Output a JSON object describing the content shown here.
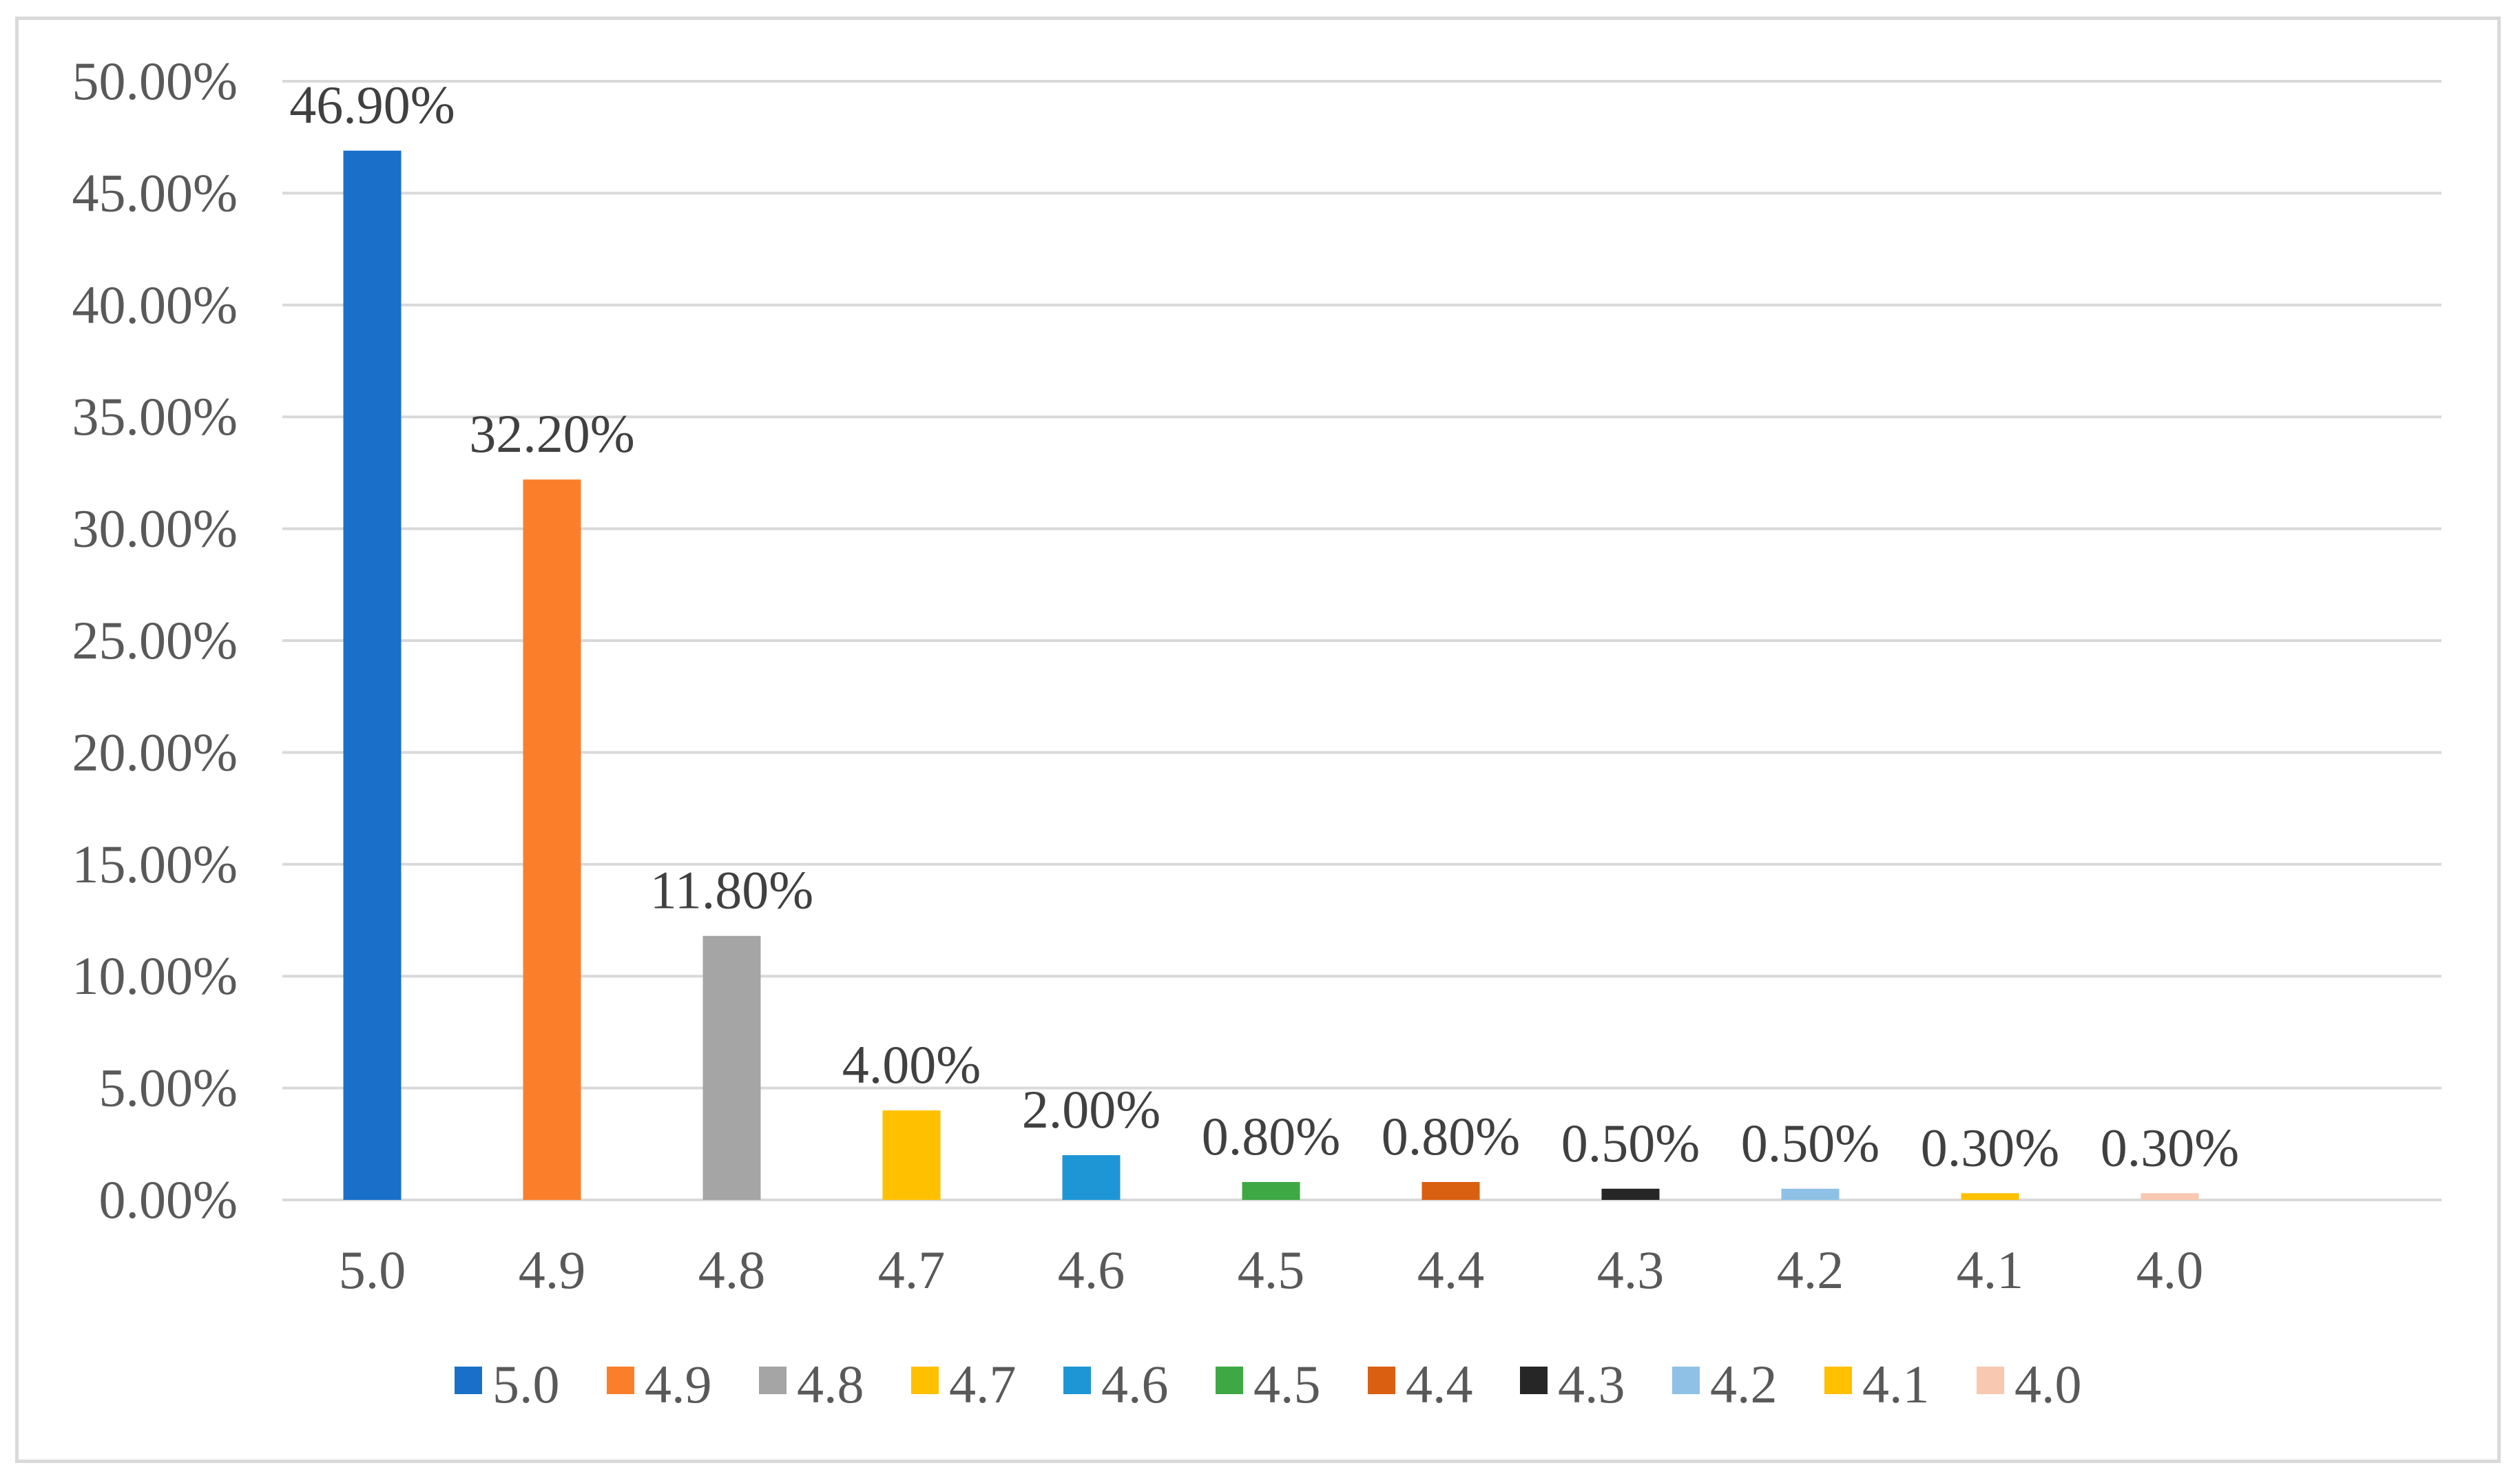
{
  "chart_data": {
    "type": "bar",
    "title": "",
    "xlabel": "",
    "ylabel": "",
    "categories": [
      "5.0",
      "4.9",
      "4.8",
      "4.7",
      "4.6",
      "4.5",
      "4.4",
      "4.3",
      "4.2",
      "4.1",
      "4.0"
    ],
    "values": [
      46.9,
      32.2,
      11.8,
      4.0,
      2.0,
      0.8,
      0.8,
      0.5,
      0.5,
      0.3,
      0.3
    ],
    "data_labels": [
      "46.90%",
      "32.20%",
      "11.80%",
      "4.00%",
      "2.00%",
      "0.80%",
      "0.80%",
      "0.50%",
      "0.50%",
      "0.30%",
      "0.30%"
    ],
    "colors": [
      "#1a70c8",
      "#fb7f2b",
      "#a5a5a5",
      "#ffc000",
      "#1e96d6",
      "#3ea844",
      "#d95f11",
      "#262626",
      "#8fc1e6",
      "#ffc000",
      "#f9c8b0"
    ],
    "ylim": [
      0,
      50
    ],
    "yticks": [
      0,
      5,
      10,
      15,
      20,
      25,
      30,
      35,
      40,
      45,
      50
    ],
    "ytick_labels": [
      "0.00%",
      "5.00%",
      "10.00%",
      "15.00%",
      "20.00%",
      "25.00%",
      "30.00%",
      "35.00%",
      "40.00%",
      "45.00%",
      "50.00%"
    ],
    "grid": true,
    "legend": {
      "placement": "bottom",
      "entries": [
        "5.0",
        "4.9",
        "4.8",
        "4.7",
        "4.6",
        "4.5",
        "4.4",
        "4.3",
        "4.2",
        "4.1",
        "4.0"
      ]
    }
  }
}
